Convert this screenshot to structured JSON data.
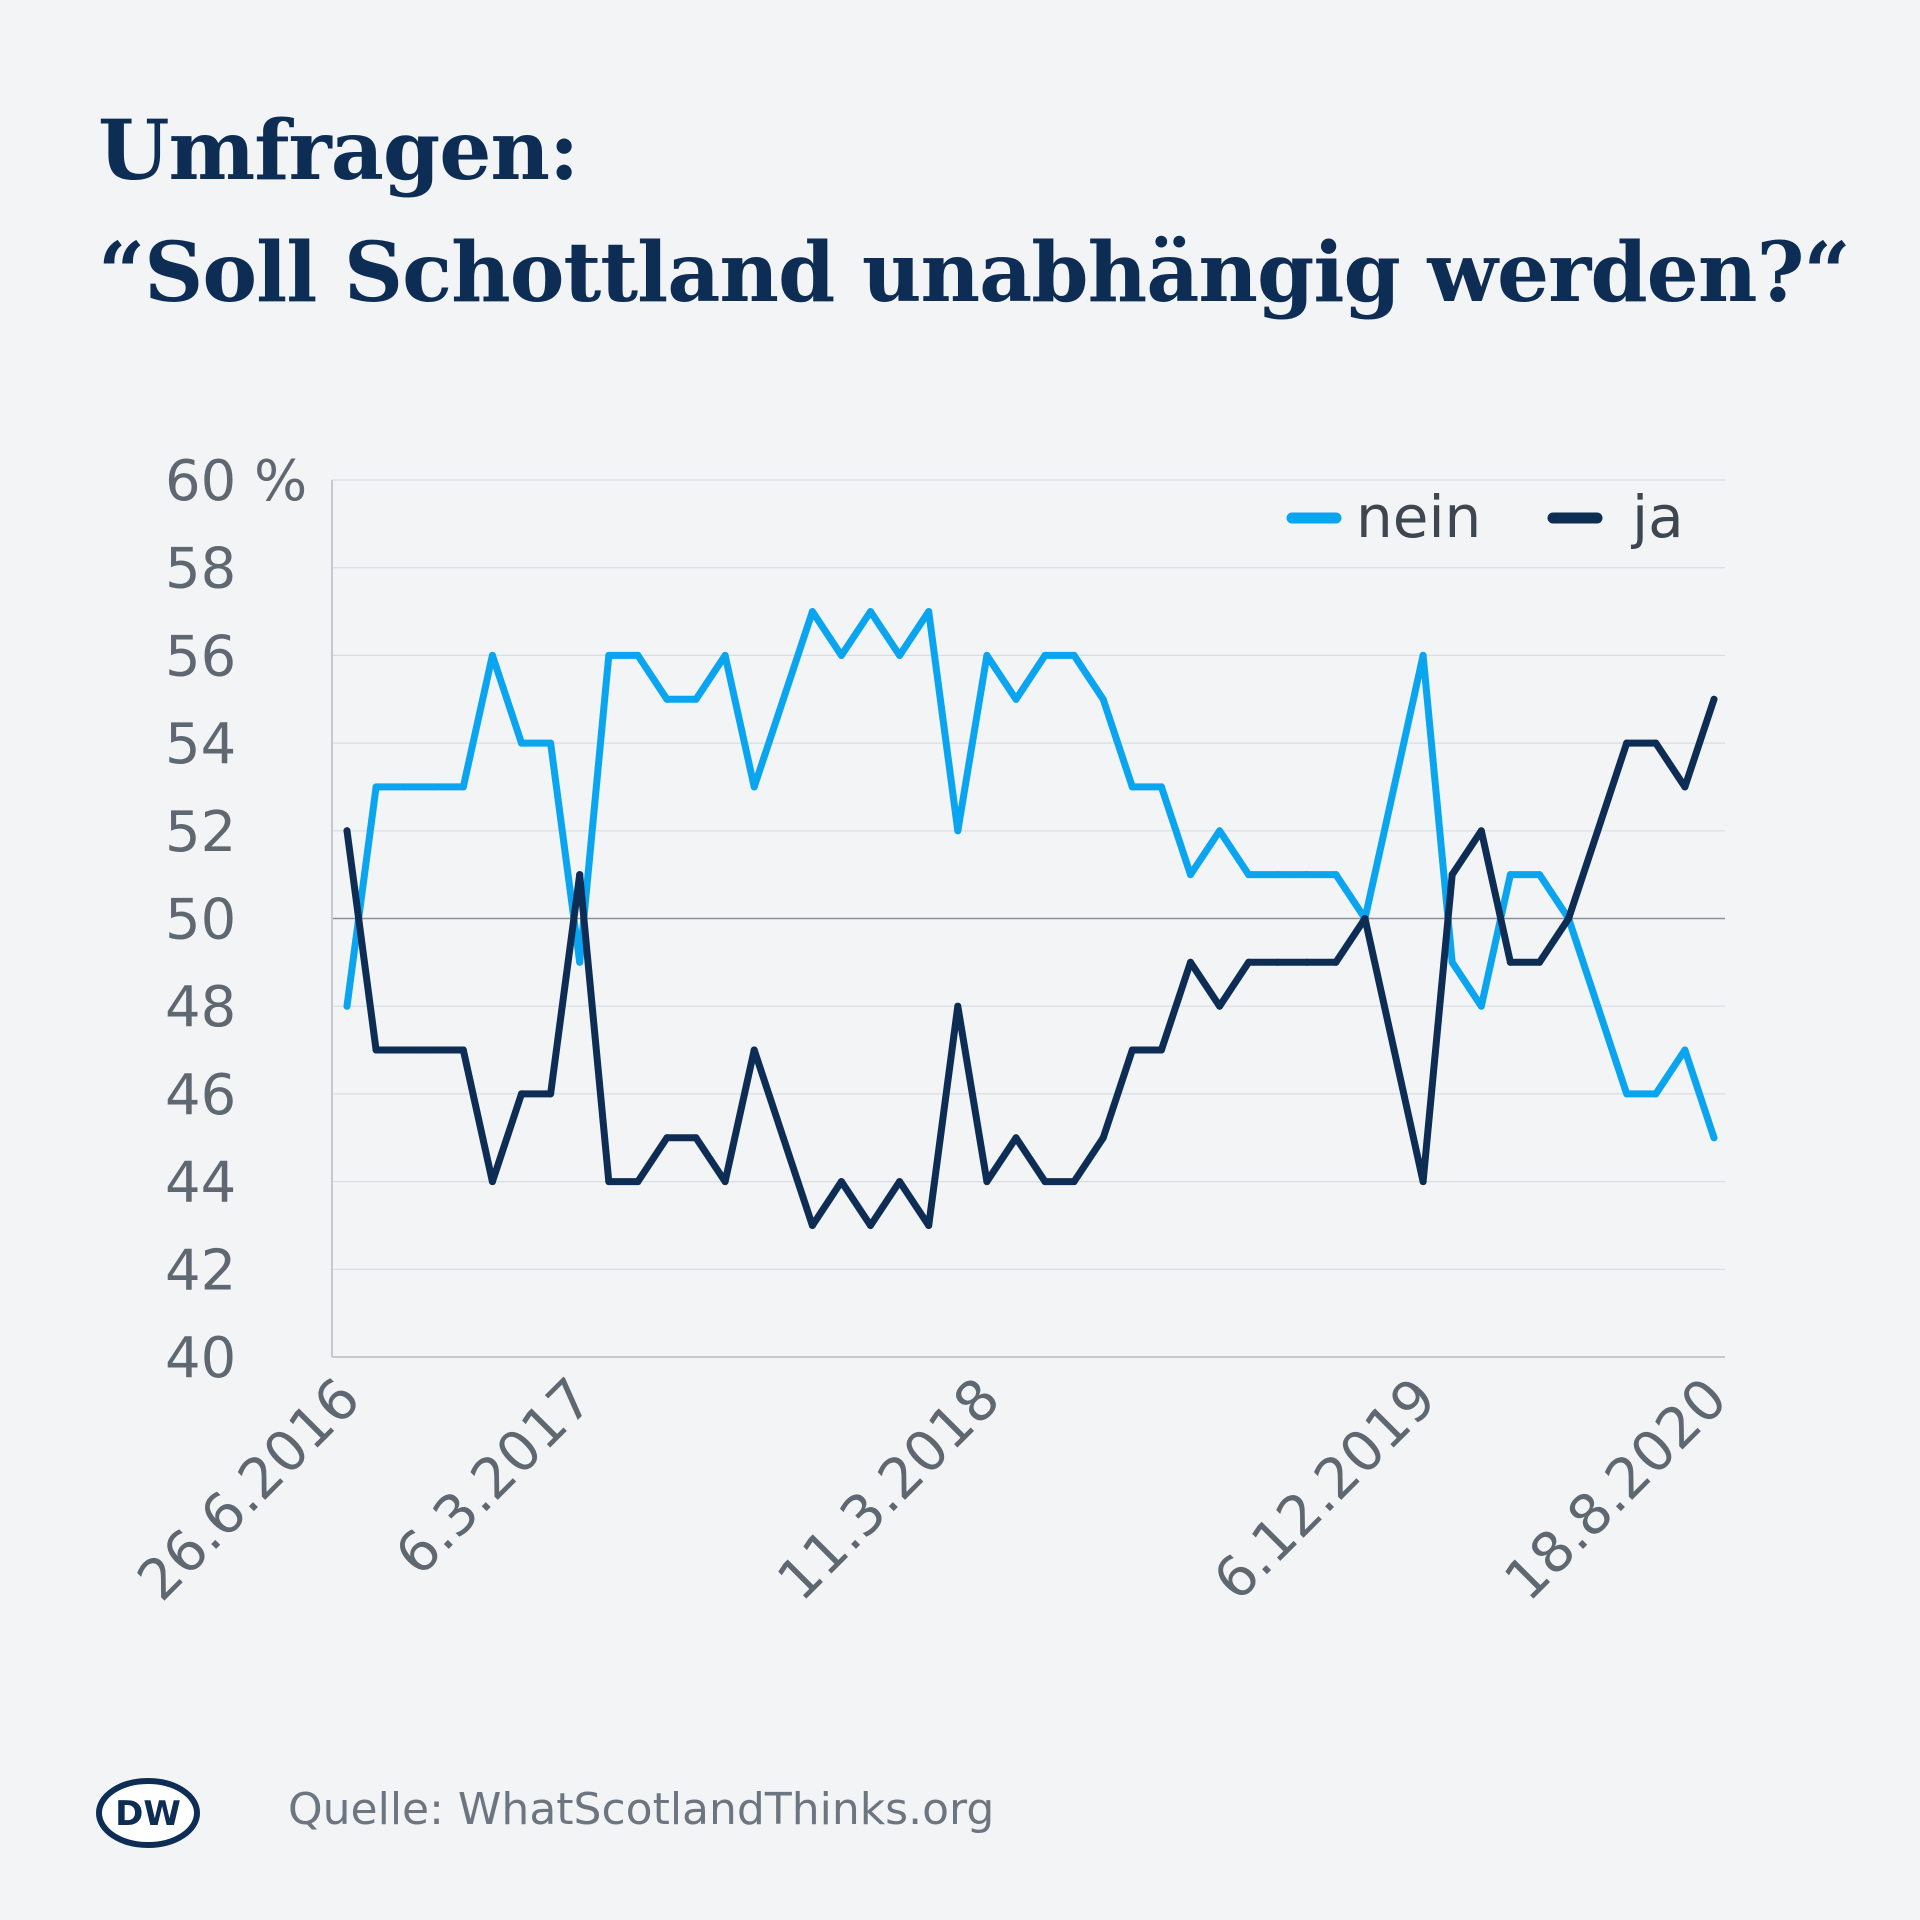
{
  "title": {
    "line1": "Umfragen:",
    "line2": "“Soll Schottland unabhängig werden?“"
  },
  "footer": {
    "logo_text": "DW",
    "source": "Quelle: WhatScotlandThinks.org"
  },
  "colors": {
    "background": "#f2f4f6",
    "title": "#0e2d55",
    "nein": "#0aa5f0",
    "ja": "#0e2d55",
    "axis_text": "#5f6871",
    "grid": "#d8dde2"
  },
  "chart_data": {
    "type": "line",
    "title": "Umfragen: “Soll Schottland unabhängig werden?“",
    "xlabel": "",
    "ylabel": "",
    "y_unit_label": "60 %",
    "ylim": [
      40,
      60
    ],
    "yticks": [
      40,
      42,
      44,
      46,
      48,
      50,
      52,
      54,
      56,
      58,
      60
    ],
    "ytick_labels": [
      "40",
      "42",
      "44",
      "46",
      "48",
      "50",
      "52",
      "54",
      "56",
      "58",
      "60 %"
    ],
    "grid": true,
    "legend": "top-right",
    "x_tick_labels": [
      "26.6.2016",
      "6.3.2017",
      "11.3.2018",
      "6.12.2019",
      "18.8.2020"
    ],
    "x_tick_index": [
      0,
      8,
      22,
      37,
      47
    ],
    "series": [
      {
        "name": "nein",
        "color": "#0aa5f0",
        "values": [
          48,
          53,
          53,
          53,
          53,
          56,
          54,
          54,
          49,
          56,
          56,
          55,
          55,
          56,
          53,
          55,
          57,
          56,
          57,
          56,
          57,
          52,
          56,
          55,
          56,
          56,
          55,
          53,
          53,
          51,
          52,
          51,
          51,
          51,
          51,
          50,
          53,
          56,
          49,
          48,
          51,
          51,
          50,
          48,
          46,
          46,
          47,
          45
        ]
      },
      {
        "name": "ja",
        "color": "#0e2d55",
        "values": [
          52,
          47,
          47,
          47,
          47,
          44,
          46,
          46,
          51,
          44,
          44,
          45,
          45,
          44,
          47,
          45,
          43,
          44,
          43,
          44,
          43,
          48,
          44,
          45,
          44,
          44,
          45,
          47,
          47,
          49,
          48,
          49,
          49,
          49,
          49,
          50,
          47,
          44,
          51,
          52,
          49,
          49,
          50,
          52,
          54,
          54,
          53,
          55
        ]
      }
    ]
  }
}
